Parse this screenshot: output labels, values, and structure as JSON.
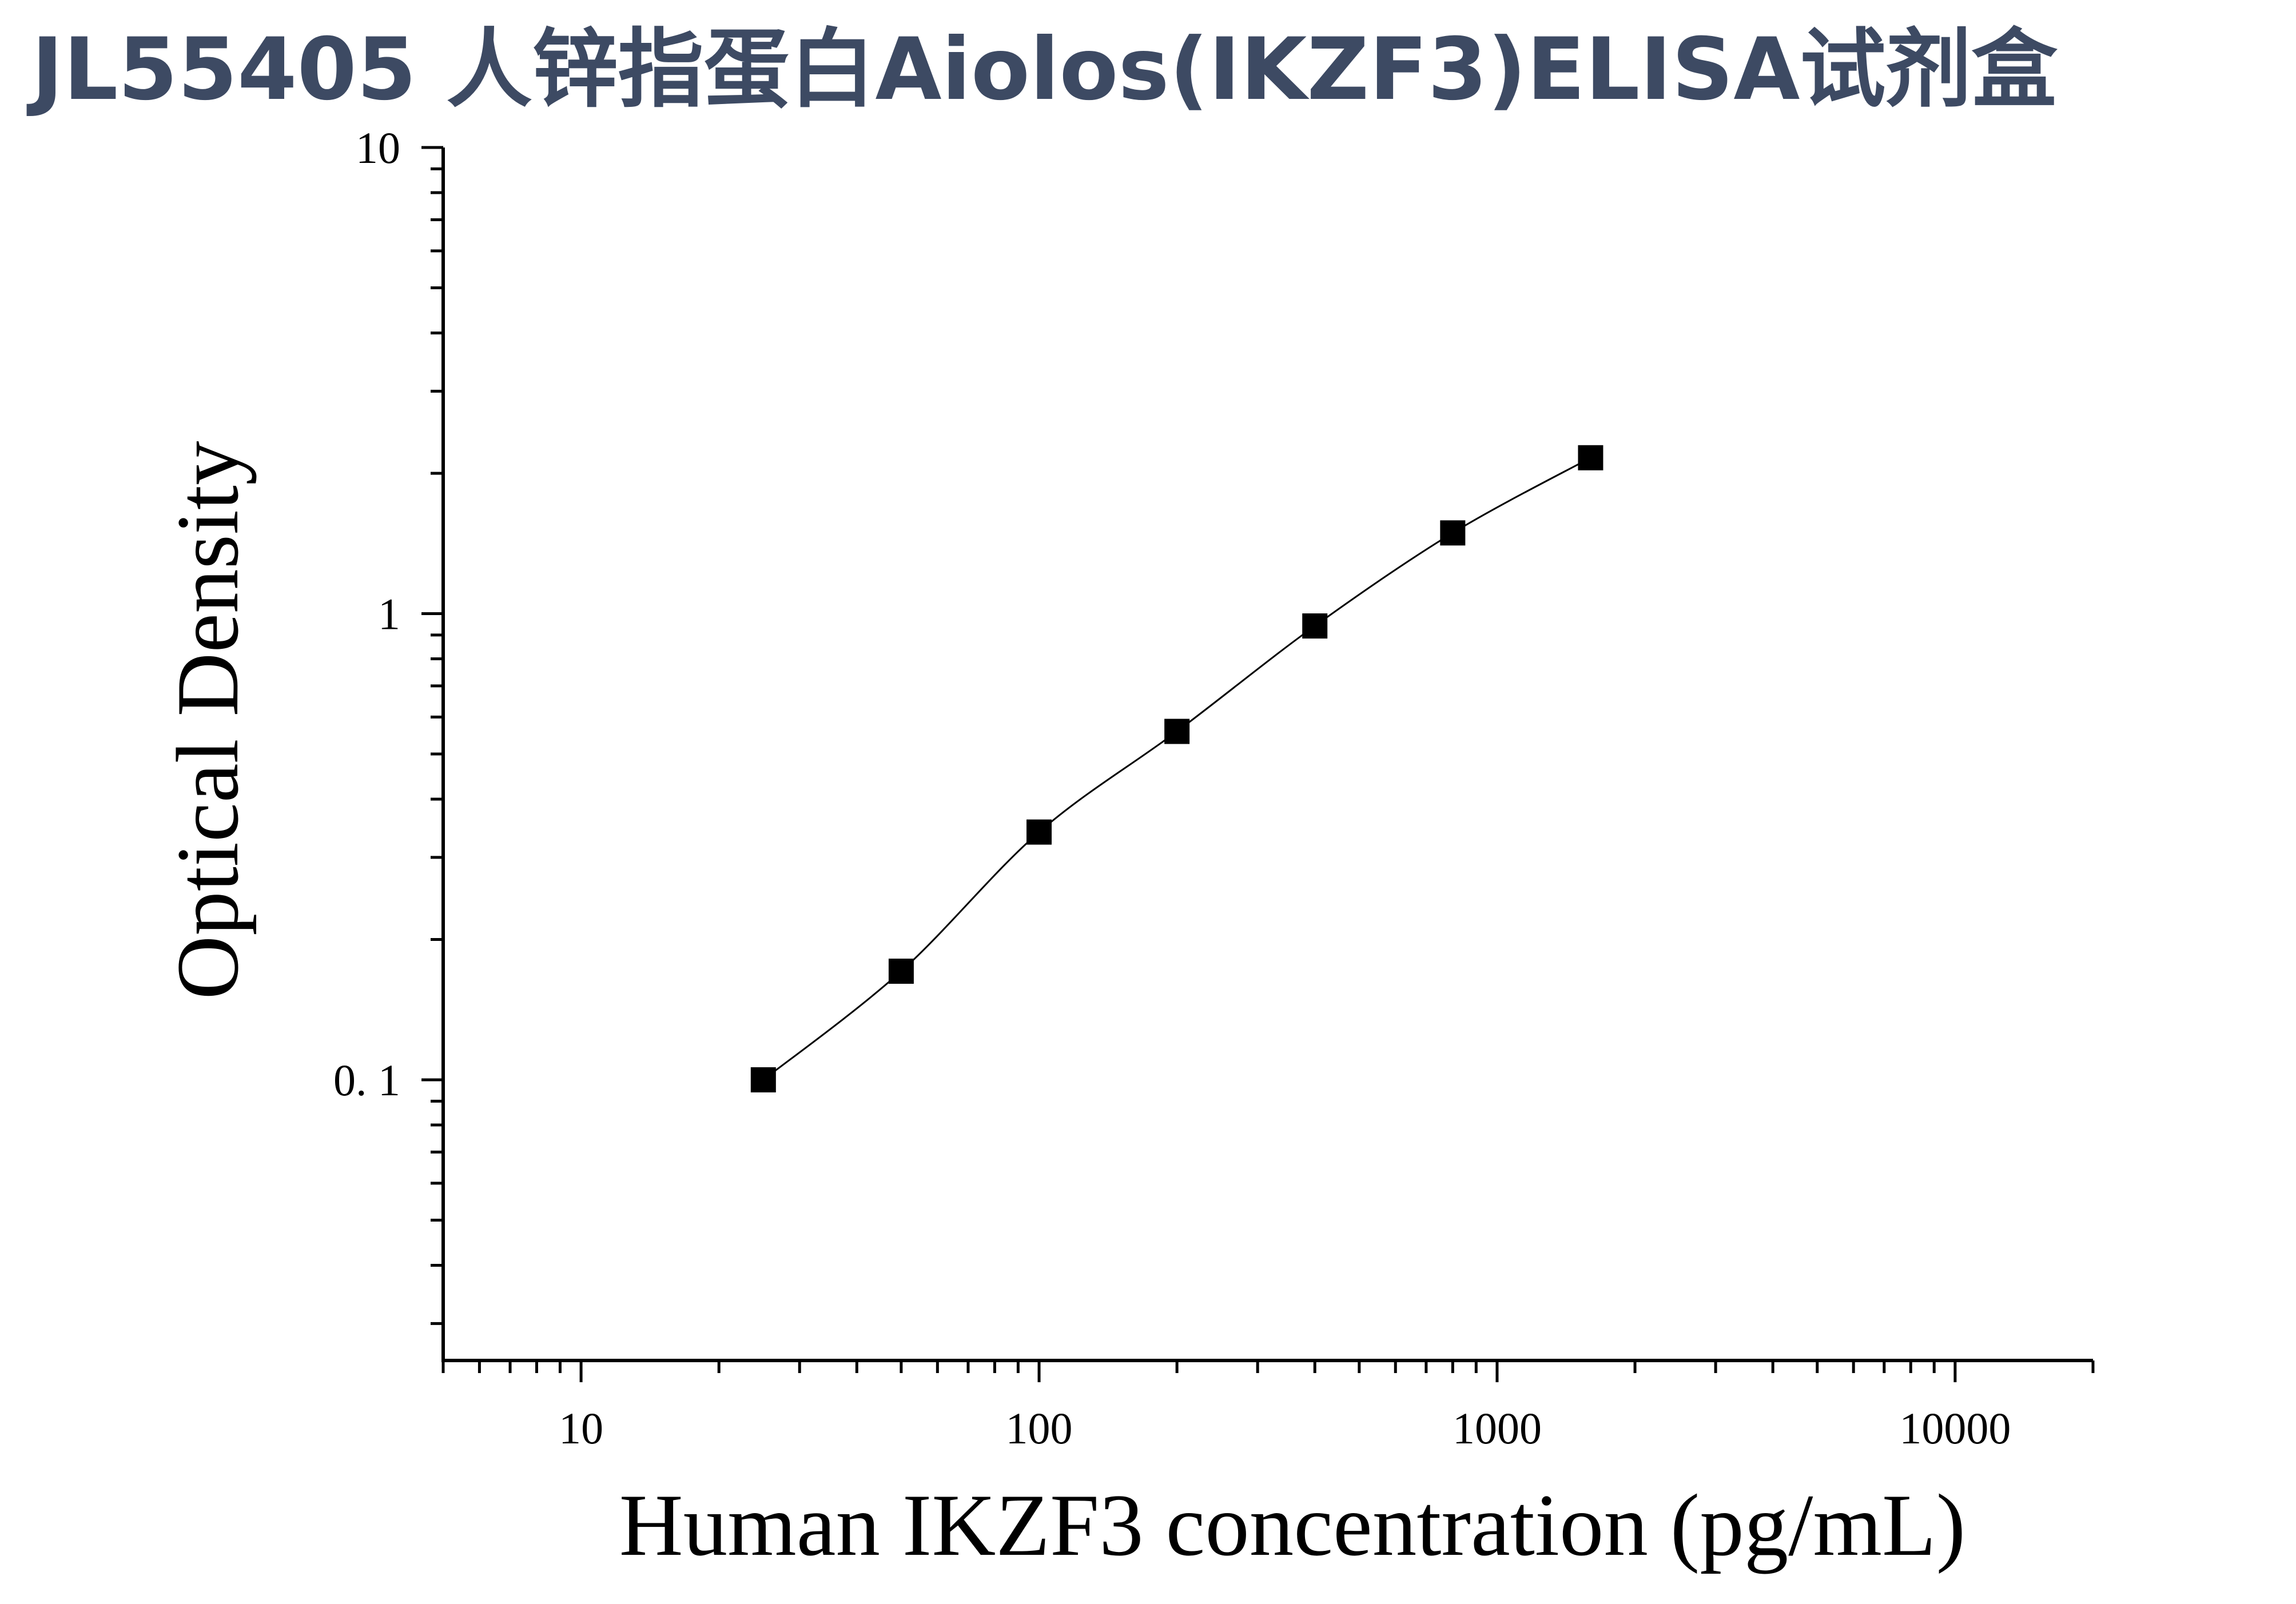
{
  "title": "JL55405 人锌指蛋白Aiolos(IKZF3)ELISA试剂盒",
  "chart_data": {
    "type": "scatter",
    "xlabel": "Human IKZF3 concentration (pg/mL)",
    "ylabel": "Optical Density",
    "xscale": "log",
    "yscale": "log",
    "xlim": [
      5,
      20000
    ],
    "ylim": [
      0.025,
      10
    ],
    "x_ticks": [
      {
        "value": 10,
        "label": "10"
      },
      {
        "value": 100,
        "label": "100"
      },
      {
        "value": 1000,
        "label": "1000"
      },
      {
        "value": 10000,
        "label": "10000"
      }
    ],
    "y_ticks": [
      {
        "value": 0.1,
        "label": "0. 1"
      },
      {
        "value": 1,
        "label": "1"
      },
      {
        "value": 10,
        "label": "10"
      }
    ],
    "series": [
      {
        "x": [
          25,
          50,
          100,
          200,
          400,
          800,
          1600
        ],
        "y": [
          0.1,
          0.171,
          0.34,
          0.559,
          0.941,
          1.49,
          2.16
        ],
        "marker": "square",
        "fitted_curve": true,
        "color": "#000000"
      }
    ],
    "grid": false,
    "legend": "none"
  }
}
